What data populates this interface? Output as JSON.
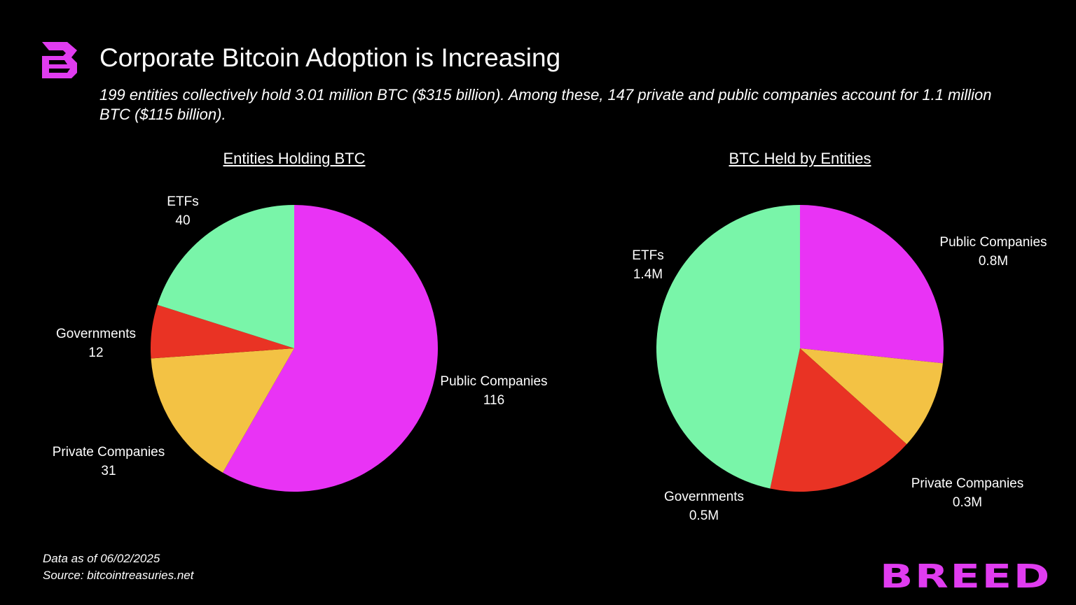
{
  "header": {
    "title": "Corporate Bitcoin Adoption is Increasing",
    "subtitle": "199 entities collectively hold 3.01 million BTC ($315 billion). Among these, 147 private and public companies account for 1.1 million BTC ($115 billion).",
    "logo_text": "B"
  },
  "footer": {
    "date": "Data as of 06/02/2025",
    "source": "Source: bitcointreasuries.net",
    "brand": "BREED"
  },
  "colors": {
    "public": "#e933f5",
    "private": "#f3c244",
    "governments": "#e93324",
    "etfs": "#79f5a9",
    "brand": "#e03cf0"
  },
  "chart_data": [
    {
      "type": "pie",
      "title": "Entities Holding BTC",
      "start": "12 o'clock, clockwise",
      "slices": [
        {
          "label": "Public Companies",
          "value": 116,
          "value_label": "116",
          "color": "#e933f5"
        },
        {
          "label": "Private Companies",
          "value": 31,
          "value_label": "31",
          "color": "#f3c244"
        },
        {
          "label": "Governments",
          "value": 12,
          "value_label": "12",
          "color": "#e93324"
        },
        {
          "label": "ETFs",
          "value": 40,
          "value_label": "40",
          "color": "#79f5a9"
        }
      ]
    },
    {
      "type": "pie",
      "title": "BTC Held by Entities",
      "start": "12 o'clock, clockwise",
      "slices": [
        {
          "label": "Public Companies",
          "value": 0.8,
          "value_label": "0.8M",
          "color": "#e933f5"
        },
        {
          "label": "Private Companies",
          "value": 0.3,
          "value_label": "0.3M",
          "color": "#f3c244"
        },
        {
          "label": "Governments",
          "value": 0.5,
          "value_label": "0.5M",
          "color": "#e93324"
        },
        {
          "label": "ETFs",
          "value": 1.4,
          "value_label": "1.4M",
          "color": "#79f5a9"
        }
      ]
    }
  ]
}
